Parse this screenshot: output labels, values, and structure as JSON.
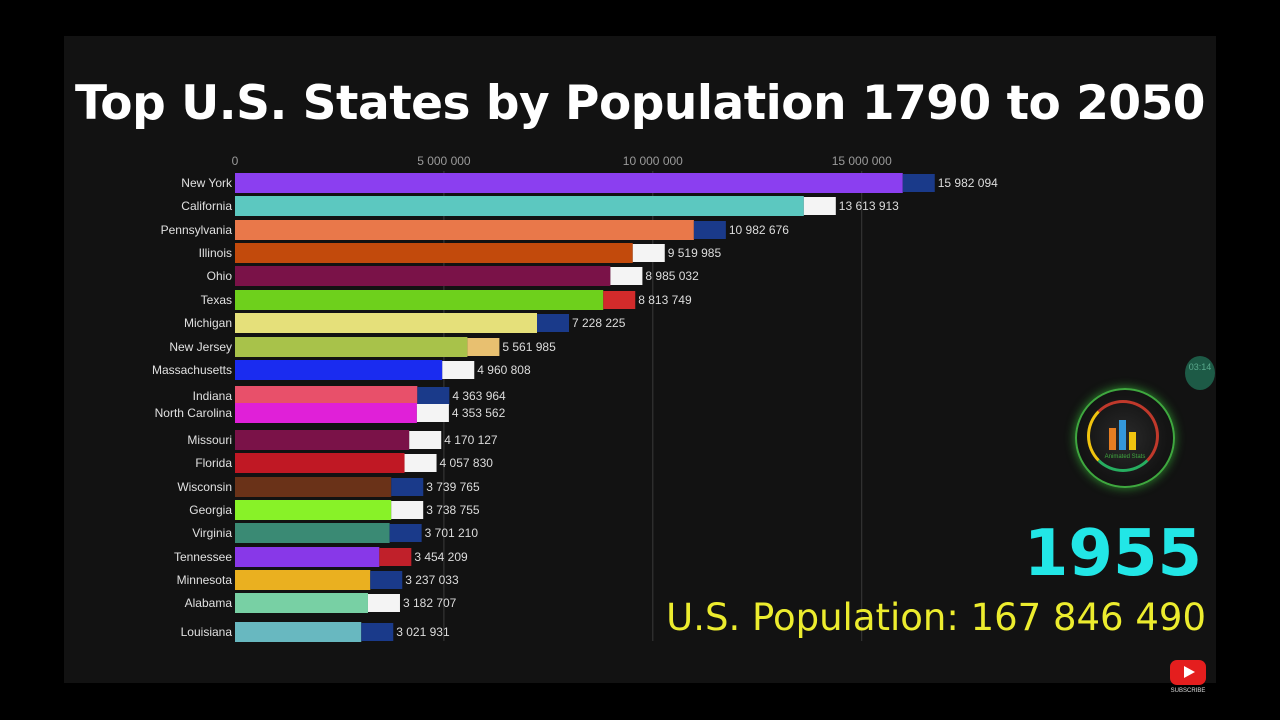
{
  "page": {
    "title": "Top U.S. States by Population 1790 to 2050",
    "year": "1955",
    "population_text": "U.S. Population: 167 846 490",
    "timer_text": "03:14",
    "logo_text": "Animated Stats",
    "subscribe_label": "SUBSCRIBE"
  },
  "colors": {
    "background": "#121212",
    "year": "#22e6e6",
    "population": "#ecec2e"
  },
  "chart_data": {
    "type": "bar",
    "title": "Top U.S. States by Population 1790 to 2050",
    "xlim": [
      0,
      16000000
    ],
    "ticks": [
      {
        "value": 0,
        "label": "0"
      },
      {
        "value": 5000000,
        "label": "5 000 000"
      },
      {
        "value": 10000000,
        "label": "10 000 000"
      },
      {
        "value": 15000000,
        "label": "15 000 000"
      }
    ],
    "categories": [
      "New York",
      "California",
      "Pennsylvania",
      "Illinois",
      "Ohio",
      "Texas",
      "Michigan",
      "New Jersey",
      "Massachusetts",
      "Indiana",
      "North Carolina",
      "Missouri",
      "Florida",
      "Wisconsin",
      "Georgia",
      "Virginia",
      "Tennessee",
      "Minnesota",
      "Alabama",
      "Louisiana"
    ],
    "values": [
      15982094,
      13613913,
      10982676,
      9519985,
      8985032,
      8813749,
      7228225,
      5561985,
      4960808,
      4363964,
      4353562,
      4170127,
      4057830,
      3739765,
      3738755,
      3701210,
      3454209,
      3237033,
      3182707,
      3021931
    ],
    "value_labels": [
      "15 982 094",
      "13 613 913",
      "10 982 676",
      "9 519 985",
      "8 985 032",
      "8 813 749",
      "7 228 225",
      "5 561 985",
      "4 960 808",
      "4 363 964",
      "4 353 562",
      "4 170 127",
      "4 057 830",
      "3 739 765",
      "3 738 755",
      "3 701 210",
      "3 454 209",
      "3 237 033",
      "3 182 707",
      "3 021 931"
    ],
    "colors": [
      "#8b3ff0",
      "#5cc8c0",
      "#e9784a",
      "#c24a0c",
      "#7a1248",
      "#6ed01c",
      "#e5e07a",
      "#a8c24a",
      "#1a2cf0",
      "#e8506a",
      "#e020d8",
      "#7a1248",
      "#c01824",
      "#6a3218",
      "#88f228",
      "#3a8a74",
      "#8838e8",
      "#eab020",
      "#78d0a4",
      "#68b8c0"
    ],
    "flag_colors": [
      "#1a3a8a",
      "#f4f4f4",
      "#1a3a8a",
      "#f4f4f4",
      "#f4f4f4",
      "#d22b2b",
      "#1a3a8a",
      "#e8c070",
      "#f4f4f4",
      "#1a3a8a",
      "#f4f4f4",
      "#f4f4f4",
      "#f4f4f4",
      "#1a3a8a",
      "#f4f4f4",
      "#1a3a8a",
      "#c0202a",
      "#1a3a8a",
      "#f4f4f4",
      "#1a3a8a"
    ],
    "grid": true,
    "legend": "none"
  }
}
